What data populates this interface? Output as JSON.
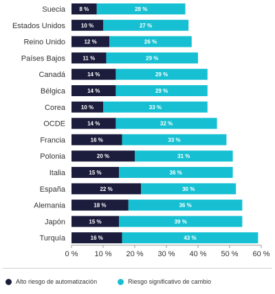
{
  "chart_data": {
    "type": "bar",
    "orientation": "horizontal",
    "stacked": true,
    "categories": [
      "Suecia",
      "Estados Unidos",
      "Reino Unido",
      "Países Bajos",
      "Canadá",
      "Bélgica",
      "Corea",
      "OCDE",
      "Francia",
      "Polonia",
      "Italia",
      "España",
      "Alemania",
      "Japón",
      "Turquía"
    ],
    "series": [
      {
        "name": "Alto riesgo de automatización",
        "color": "#1c1c3c",
        "values": [
          8,
          10,
          12,
          11,
          14,
          14,
          10,
          14,
          16,
          20,
          15,
          22,
          18,
          15,
          16
        ],
        "labels": [
          "8 %",
          "10 %",
          "12 %",
          "11 %",
          "14 %",
          "14 %",
          "10 %",
          "14 %",
          "16 %",
          "20 %",
          "15 %",
          "22 %",
          "18 %",
          "15 %",
          "16 %"
        ]
      },
      {
        "name": "Riesgo significativo de cambio",
        "color": "#16c0d2",
        "values": [
          28,
          27,
          26,
          29,
          29,
          29,
          33,
          32,
          33,
          31,
          36,
          30,
          36,
          39,
          43
        ],
        "labels": [
          "28 %",
          "27 %",
          "26 %",
          "29 %",
          "29 %",
          "29 %",
          "33 %",
          "32 %",
          "33 %",
          "31 %",
          "36 %",
          "30 %",
          "36 %",
          "39 %",
          "43 %"
        ]
      }
    ],
    "xlim": [
      0,
      60
    ],
    "xticks": [
      0,
      10,
      20,
      30,
      40,
      50,
      60
    ],
    "xtick_labels": [
      "0 %",
      "10 %",
      "20 %",
      "30 %",
      "40 %",
      "50 %",
      "60 %"
    ],
    "axis_color": "#9a9a9a",
    "grid": false,
    "legend_position": "bottom"
  }
}
